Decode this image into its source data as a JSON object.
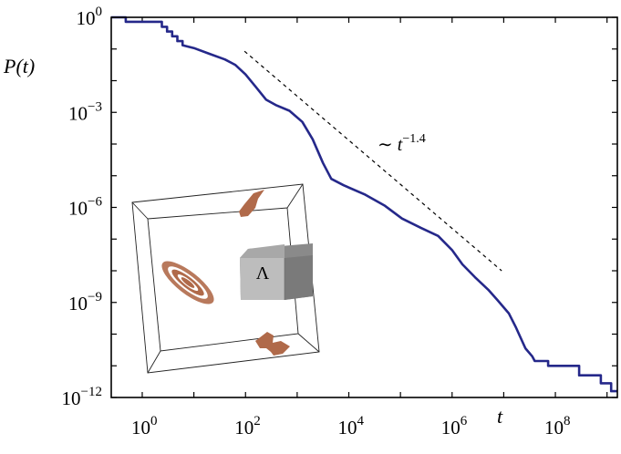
{
  "chart_data": {
    "type": "line",
    "title": "",
    "xlabel": "t",
    "ylabel": "P(t)",
    "xscale": "log",
    "yscale": "log",
    "xlim_log10": [
      -0.6,
      9.2
    ],
    "ylim_log10": [
      -12,
      0
    ],
    "grid": false,
    "x_ticks": [
      {
        "log10": 0,
        "base": "10",
        "exp": "0"
      },
      {
        "log10": 2,
        "base": "10",
        "exp": "2"
      },
      {
        "log10": 4,
        "base": "10",
        "exp": "4"
      },
      {
        "log10": 6,
        "base": "10",
        "exp": "6"
      },
      {
        "log10": 8,
        "base": "10",
        "exp": "8"
      }
    ],
    "y_ticks": [
      {
        "log10": 0,
        "base": "10",
        "exp": "0"
      },
      {
        "log10": -3,
        "base": "10",
        "exp": "−3"
      },
      {
        "log10": -6,
        "base": "10",
        "exp": "−6"
      },
      {
        "log10": -9,
        "base": "10",
        "exp": "−9"
      },
      {
        "log10": -12,
        "base": "10",
        "exp": "−12"
      }
    ],
    "series": [
      {
        "name": "P(t)",
        "color": "#25288a",
        "log10_points": [
          [
            -0.6,
            0
          ],
          [
            -0.32,
            0
          ],
          [
            -0.32,
            -0.14
          ],
          [
            0.38,
            -0.14
          ],
          [
            0.38,
            -0.3
          ],
          [
            0.48,
            -0.3
          ],
          [
            0.48,
            -0.45
          ],
          [
            0.58,
            -0.45
          ],
          [
            0.58,
            -0.6
          ],
          [
            0.68,
            -0.6
          ],
          [
            0.68,
            -0.75
          ],
          [
            0.78,
            -0.75
          ],
          [
            0.78,
            -0.88
          ],
          [
            1.0,
            -0.97
          ],
          [
            1.3,
            -1.15
          ],
          [
            1.6,
            -1.33
          ],
          [
            1.8,
            -1.5
          ],
          [
            2.0,
            -1.8
          ],
          [
            2.2,
            -2.2
          ],
          [
            2.4,
            -2.6
          ],
          [
            2.6,
            -2.78
          ],
          [
            2.85,
            -2.95
          ],
          [
            3.1,
            -3.3
          ],
          [
            3.3,
            -3.85
          ],
          [
            3.5,
            -4.6
          ],
          [
            3.66,
            -5.1
          ],
          [
            3.9,
            -5.3
          ],
          [
            4.32,
            -5.6
          ],
          [
            4.7,
            -5.95
          ],
          [
            5.03,
            -6.35
          ],
          [
            5.4,
            -6.65
          ],
          [
            5.73,
            -6.9
          ],
          [
            6.0,
            -7.35
          ],
          [
            6.2,
            -7.8
          ],
          [
            6.44,
            -8.2
          ],
          [
            6.7,
            -8.6
          ],
          [
            6.88,
            -8.93
          ],
          [
            7.1,
            -9.35
          ],
          [
            7.24,
            -9.8
          ],
          [
            7.42,
            -10.45
          ],
          [
            7.55,
            -10.7
          ],
          [
            7.6,
            -10.85
          ],
          [
            7.86,
            -10.85
          ],
          [
            7.86,
            -11.0
          ],
          [
            8.46,
            -11.0
          ],
          [
            8.46,
            -11.3
          ],
          [
            8.88,
            -11.3
          ],
          [
            8.88,
            -11.55
          ],
          [
            9.08,
            -11.55
          ],
          [
            9.08,
            -11.8
          ],
          [
            9.2,
            -11.8
          ]
        ]
      }
    ],
    "reference_line": {
      "name": "power law",
      "label_prefix": "∼ ",
      "label_var": "t",
      "label_exp": "−1.4",
      "slope": -1.4,
      "log10_start": [
        1.98,
        -1.07
      ],
      "log10_end": [
        6.96,
        -8.0
      ]
    },
    "inset": {
      "label": "Λ",
      "shape_color": "#b06a4a"
    }
  }
}
